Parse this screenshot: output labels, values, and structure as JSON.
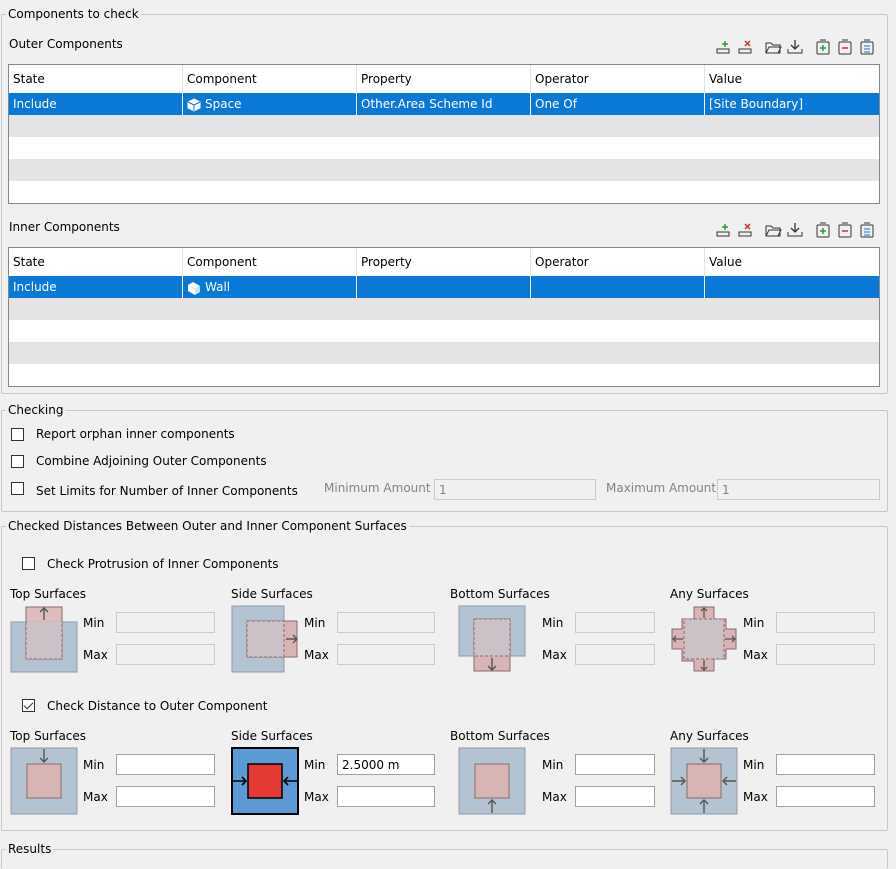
{
  "components_group": {
    "title": "Components to check",
    "outer": {
      "label": "Outer Components",
      "columns": [
        "State",
        "Component",
        "Property",
        "Operator",
        "Value"
      ],
      "rows": [
        {
          "state": "Include",
          "component": "Space",
          "property": "Other.Area Scheme Id",
          "operator": "One Of",
          "value": "[Site Boundary]"
        }
      ]
    },
    "inner": {
      "label": "Inner Components",
      "columns": [
        "State",
        "Component",
        "Property",
        "Operator",
        "Value"
      ],
      "rows": [
        {
          "state": "Include",
          "component": "Wall",
          "property": "",
          "operator": "",
          "value": ""
        }
      ]
    },
    "toolbar_icons": [
      "add-row-icon",
      "delete-row-icon",
      "open-folder-icon",
      "download-icon",
      "add-group-icon",
      "remove-group-icon",
      "group-list-icon"
    ]
  },
  "checking_group": {
    "title": "Checking",
    "report_orphan": {
      "label": "Report orphan inner components",
      "checked": false
    },
    "combine_adjoining": {
      "label": "Combine Adjoining Outer Components",
      "checked": false
    },
    "set_limits": {
      "label": "Set Limits for Number of Inner Components",
      "checked": false
    },
    "minimum_amount": {
      "label": "Minimum Amount",
      "value": "1"
    },
    "maximum_amount": {
      "label": "Maximum Amount",
      "value": "1"
    }
  },
  "distances_group": {
    "title": "Checked Distances Between Outer and Inner Component Surfaces",
    "protrusion": {
      "label": "Check Protrusion of Inner Components",
      "checked": false,
      "sections": [
        {
          "title": "Top Surfaces",
          "min_label": "Min",
          "max_label": "Max",
          "min": "",
          "max": ""
        },
        {
          "title": "Side Surfaces",
          "min_label": "Min",
          "max_label": "Max",
          "min": "",
          "max": ""
        },
        {
          "title": "Bottom Surfaces",
          "min_label": "Min",
          "max_label": "Max",
          "min": "",
          "max": ""
        },
        {
          "title": "Any Surfaces",
          "min_label": "Min",
          "max_label": "Max",
          "min": "",
          "max": ""
        }
      ]
    },
    "distance": {
      "label": "Check Distance to Outer Component",
      "checked": true,
      "sections": [
        {
          "title": "Top Surfaces",
          "min_label": "Min",
          "max_label": "Max",
          "min": "",
          "max": ""
        },
        {
          "title": "Side Surfaces",
          "min_label": "Min",
          "max_label": "Max",
          "min": "2.5000 m",
          "max": ""
        },
        {
          "title": "Bottom Surfaces",
          "min_label": "Min",
          "max_label": "Max",
          "min": "",
          "max": ""
        },
        {
          "title": "Any Surfaces",
          "min_label": "Min",
          "max_label": "Max",
          "min": "",
          "max": ""
        }
      ]
    }
  },
  "results_group": {
    "title": "Results"
  },
  "colors": {
    "selection": "#0a78d7",
    "outer_box": "#b4c3d2",
    "inner_box": "#d9b4b4",
    "active_outer": "#5b9bd5",
    "active_inner": "#e53935"
  }
}
